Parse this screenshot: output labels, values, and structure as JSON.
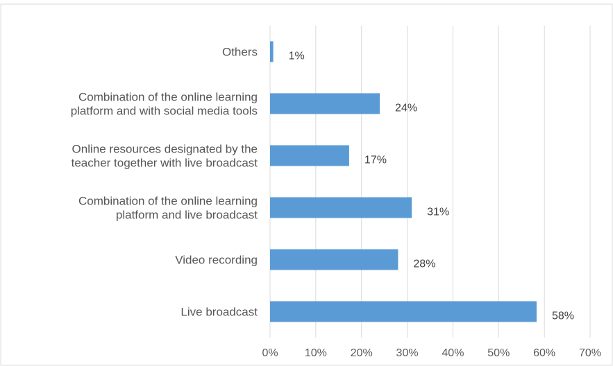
{
  "chart_data": {
    "type": "bar",
    "orientation": "horizontal",
    "categories": [
      [
        "Others"
      ],
      [
        "Combination of the online learning",
        "platform and with social media tools"
      ],
      [
        "Online resources designated by the",
        "teacher together with live broadcast"
      ],
      [
        "Combination of the online learning",
        "platform and live broadcast"
      ],
      [
        "Video recording"
      ],
      [
        "Live broadcast"
      ]
    ],
    "values": [
      0.7,
      24,
      17.3,
      31,
      28,
      58.3
    ],
    "data_labels": [
      "1%",
      "24%",
      "17%",
      "31%",
      "28%",
      "58%"
    ],
    "xlim": [
      0,
      70
    ],
    "x_ticks": [
      "0%",
      "10%",
      "20%",
      "30%",
      "40%",
      "50%",
      "60%",
      "70%"
    ],
    "grid": "vertical",
    "title": "",
    "xlabel": "",
    "ylabel": "",
    "colors": {
      "bar": "#5B9BD5",
      "grid": "#D9D9D9",
      "frame": "#D9D9D9"
    }
  }
}
